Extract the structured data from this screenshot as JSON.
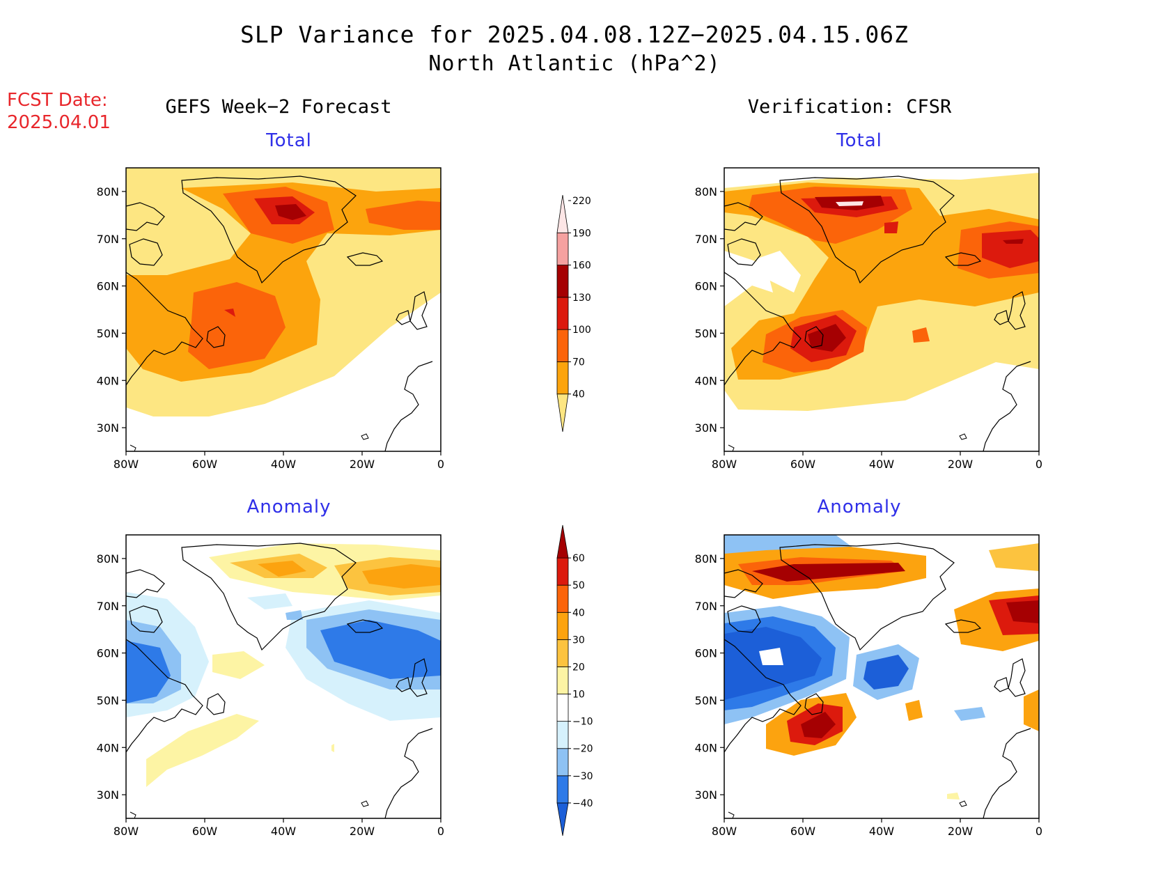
{
  "title_line1": "SLP Variance for 2025.04.08.12Z−2025.04.15.06Z",
  "title_line2": "North Atlantic (hPa^2)",
  "fcst_label": "FCST Date:",
  "fcst_date": "2025.04.01",
  "left_column_title": "GEFS Week−2 Forecast",
  "right_column_title": "Verification: CFSR",
  "panels": [
    {
      "title": "Total"
    },
    {
      "title": "Total"
    },
    {
      "title": "Anomaly"
    },
    {
      "title": "Anomaly"
    }
  ],
  "axis": {
    "lat_labels": [
      "30N",
      "40N",
      "50N",
      "60N",
      "70N",
      "80N"
    ],
    "lon_labels": [
      "80W",
      "60W",
      "40W",
      "20W",
      "0"
    ]
  },
  "colorbar_total": {
    "levels": [
      "40",
      "70",
      "100",
      "130",
      "160",
      "190",
      "220"
    ],
    "colors": [
      "#fde682",
      "#fca40d",
      "#fb640a",
      "#dc1a0d",
      "#a50002",
      "#f5a1a0",
      "#fde6e6"
    ]
  },
  "colorbar_anomaly": {
    "levels": [
      "−40",
      "−30",
      "−20",
      "−10",
      "10",
      "20",
      "30",
      "40",
      "50",
      "60"
    ],
    "colors": [
      "#1c5fd8",
      "#2e7ae8",
      "#8ec2f4",
      "#d6f1fc",
      "#ffffff",
      "#fdf4a4",
      "#fcc33f",
      "#fca30f",
      "#fb640a",
      "#dc1a0d",
      "#a50002"
    ]
  }
}
